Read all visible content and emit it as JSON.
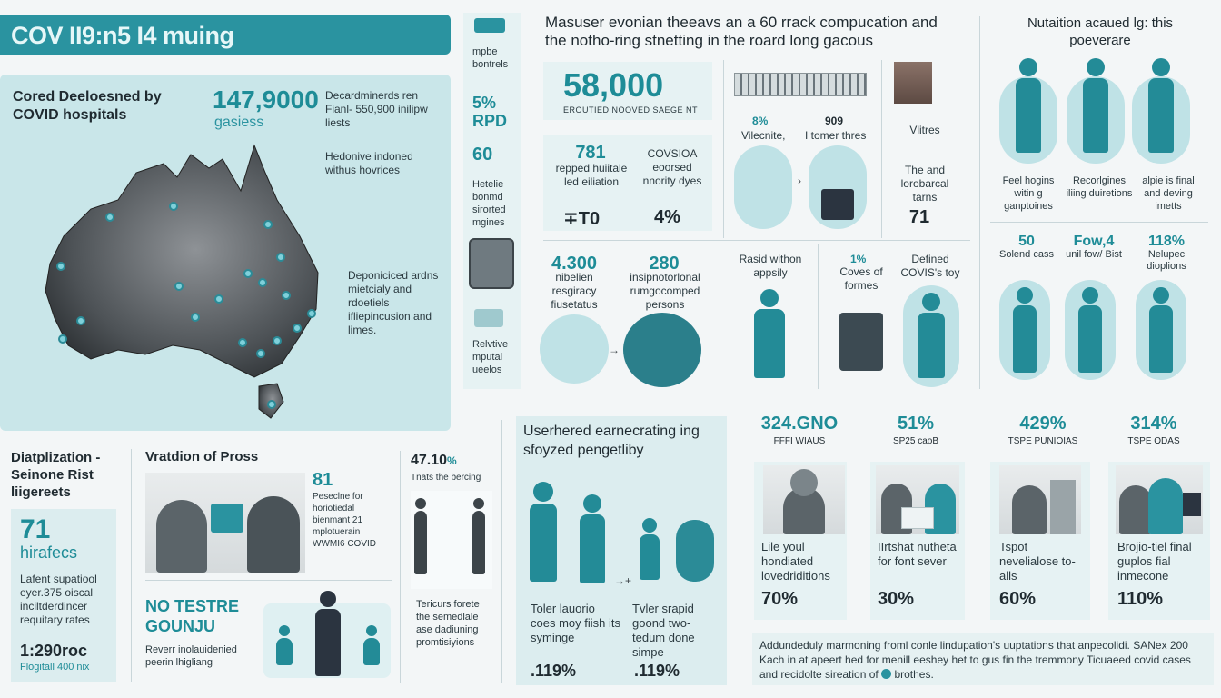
{
  "header": {
    "title": "COV II9:n5 I4 muing"
  },
  "map_panel": {
    "label": "Cored Deeloesned by COVID hospitals",
    "stat_value": "147,9000",
    "stat_sub": "gasiess",
    "note_1": "Decardminerds ren Fianl- 550,900 inilipw liests",
    "note_2": "Hedonive indoned withus hovrices",
    "note_3": "Deponiciced ardns mietcialy and rdoetiels ifliepincusion and limes."
  },
  "vertical_strip": {
    "item_1": "mpbe bontrels",
    "stat_1": "5%",
    "stat_2": "RPD",
    "stat_3": "60",
    "item_2": "Hetelie bonmd sirorted mgines",
    "item_3": "Relvtive mputal ueelos"
  },
  "mid_panel": {
    "heading": "Masuser evonian theeavs an a 60 rrack compucation and the notho-ring stnetting in the roard long gacous",
    "big_stat": "58,000",
    "big_stat_caption": "EROUTIED NOOVED SAEGE NT",
    "stat_781": "781",
    "stat_781_text": "repped huiitale led eiliation",
    "stat_t0": "∓T0",
    "covid_text": "COVSIOA eoorsed nnority dyes",
    "covid_pct": "4%",
    "building_pct": "8%",
    "building_label": "Vilecnite,",
    "stat_909": "909",
    "stat_909_label": "I tomer thres",
    "vitals_label": "Vlitres",
    "vitals_text": "The and lorobarcal tarns",
    "vitals_num": "71",
    "stat_4300": "4.300",
    "stat_4300_text": "nibelien resgiracy fiusetatus",
    "stat_280": "280",
    "stat_280_text": "insipnotorlonal rumgocomped persons",
    "rapid_text": "Rasid withon appsily",
    "pct_covs": "1%",
    "covs_text": "Coves of formes",
    "defined_text": "Defined COVIS's toy"
  },
  "nutrition": {
    "heading": "Nutaition acaued lg: this poeverare",
    "col_1": "Feel hogins witin g ganptoines",
    "col_2": "Recorlgines iliing duiretions",
    "col_3": "alpie is final and deving imetts",
    "stat_50": "50",
    "stat_50_label": "Solend cass",
    "stat_fow": "Fow,4",
    "stat_fow_label": "unil fow/ Bist",
    "stat_118": "118%",
    "stat_118_label": "Nelupec dioplions"
  },
  "bottom_left": {
    "title": "Diatplization - Seinone Rist liigereets",
    "big": "71",
    "big_sub": "hirafecs",
    "desc": "Lafent supatiool eyer.375 oiscal inciltderdincer requitary rates",
    "footer_big": "1:290roc",
    "footer_small": "Flogitall 400 nix"
  },
  "provision": {
    "title": "Vratdion of Pross",
    "stat": "81",
    "stat_text": "Peseclne for horiotiedal bienmant 21 mplotuerain WWMI6 COVID",
    "testre_title": "NO TESTRE GOUNJU",
    "testre_text": "Reverr inolauidenied peerin lhigliang"
  },
  "narrow_col": {
    "stat": "47.10",
    "stat_suffix": "%",
    "caption": "Tnats the bercing",
    "desc": "Tericurs forete the semedlale ase dadiuning promtisiyions"
  },
  "recovery": {
    "heading": "Userhered earnecrating ing sfoyzed pengetliby",
    "left_text": "Toler lauorio coes moy fiish its syminge",
    "left_pct": ".119%",
    "right_text": "Tvler srapid goond two-tedum done simpe",
    "right_pct": ".119%"
  },
  "right_stats": {
    "cols": [
      {
        "big": "324.GNO",
        "sub": "FFFI WIAUS",
        "text": "Lile youl hondiated lovedriditions",
        "pct": "70%"
      },
      {
        "big": "51%",
        "sub": "SP25 caoB",
        "text": "IIrtshat nutheta for font sever",
        "pct": "30%"
      },
      {
        "big": "429%",
        "sub": "TSPE PUNIOIAS",
        "text": "Tspot nevelialose to-alls",
        "pct": "60%"
      },
      {
        "big": "314%",
        "sub": "TSPE ODAS",
        "text": "Brojio-tiel final guplos fial inmecone",
        "pct": "110%"
      }
    ],
    "footer": "Addundeduly marmoning froml conle lindupation's uuptations that anpecolidi. SANex 200 Kach in at apeert hed for menill eeshey het to gus fin the tremmony Ticuaeed covid cases and recidolte sireation of",
    "footer_end": "brothes."
  }
}
